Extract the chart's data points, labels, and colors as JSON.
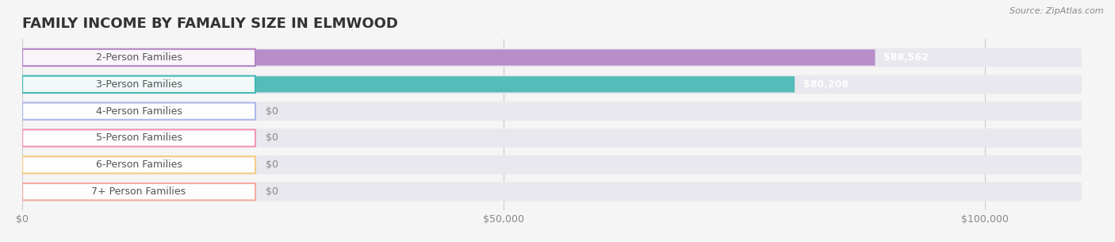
{
  "title": "FAMILY INCOME BY FAMALIY SIZE IN ELMWOOD",
  "source": "Source: ZipAtlas.com",
  "categories": [
    "2-Person Families",
    "3-Person Families",
    "4-Person Families",
    "5-Person Families",
    "6-Person Families",
    "7+ Person Families"
  ],
  "values": [
    88562,
    80208,
    0,
    0,
    0,
    0
  ],
  "bar_colors": [
    "#b07fc4",
    "#3ab5b0",
    "#a8b4e8",
    "#f48fb1",
    "#f5c97a",
    "#f4a89a"
  ],
  "value_labels": [
    "$88,562",
    "$80,208",
    "$0",
    "$0",
    "$0",
    "$0"
  ],
  "xlim_max": 110000,
  "xticks": [
    0,
    50000,
    100000
  ],
  "xticklabels": [
    "$0",
    "$50,000",
    "$100,000"
  ],
  "background_color": "#f5f5f5",
  "bar_background_color": "#e8e8ee",
  "title_fontsize": 13,
  "label_fontsize": 9,
  "value_fontsize": 9,
  "bar_height": 0.6
}
